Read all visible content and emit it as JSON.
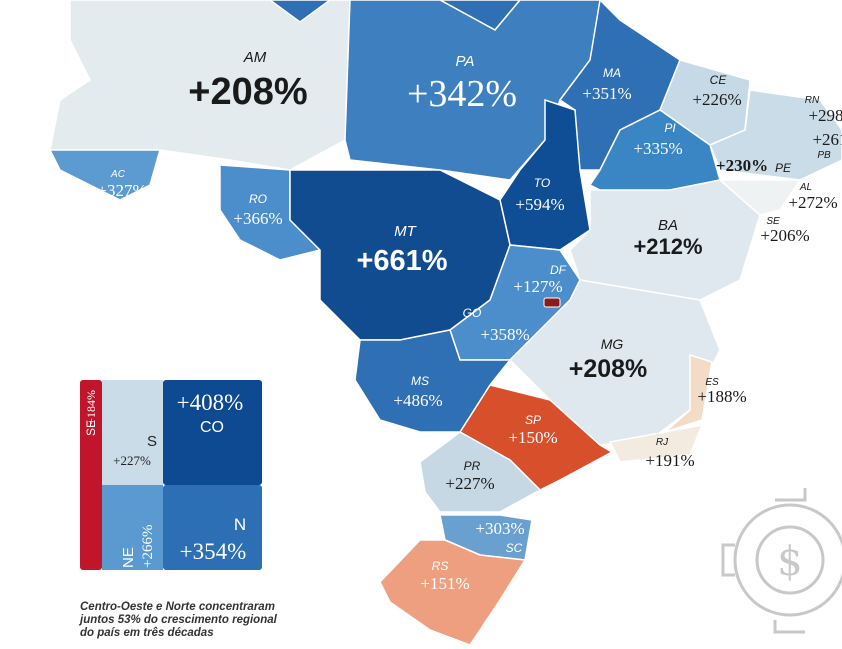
{
  "states": [
    {
      "abbr": "AM",
      "growth": "+208%"
    },
    {
      "abbr": "PA",
      "growth": "+342%"
    },
    {
      "abbr": "MA",
      "growth": "+351%"
    },
    {
      "abbr": "CE",
      "growth": "+226%"
    },
    {
      "abbr": "RN",
      "growth": "+298"
    },
    {
      "abbr": "PB",
      "growth": "+261"
    },
    {
      "abbr": "PE",
      "growth": "+230%"
    },
    {
      "abbr": "AL",
      "growth": "+272%"
    },
    {
      "abbr": "SE",
      "growth": "+206%"
    },
    {
      "abbr": "PI",
      "growth": "+335%"
    },
    {
      "abbr": "TO",
      "growth": "+594%"
    },
    {
      "abbr": "BA",
      "growth": "+212%"
    },
    {
      "abbr": "AC",
      "growth": "+327%"
    },
    {
      "abbr": "RO",
      "growth": "+366%"
    },
    {
      "abbr": "MT",
      "growth": "+661%"
    },
    {
      "abbr": "DF",
      "growth": "+127%"
    },
    {
      "abbr": "GO",
      "growth": "+358%"
    },
    {
      "abbr": "MG",
      "growth": "+208%"
    },
    {
      "abbr": "MS",
      "growth": "+486%"
    },
    {
      "abbr": "ES",
      "growth": "+188%"
    },
    {
      "abbr": "SP",
      "growth": "+150%"
    },
    {
      "abbr": "RJ",
      "growth": "+191%"
    },
    {
      "abbr": "PR",
      "growth": "+227%"
    },
    {
      "abbr": "SC",
      "growth": "+303%"
    },
    {
      "abbr": "RS",
      "growth": "+151%"
    }
  ],
  "regions": [
    {
      "name": "SE",
      "growth": "+184%"
    },
    {
      "name": "S",
      "growth": "+227%"
    },
    {
      "name": "CO",
      "growth": "+408%"
    },
    {
      "name": "NE",
      "growth": "+266%"
    },
    {
      "name": "N",
      "growth": "+354%"
    }
  ],
  "caption": [
    "Centro-Oeste e Norte concentraram",
    "juntos 53% do crescimento regional",
    "do país em três décadas"
  ]
}
